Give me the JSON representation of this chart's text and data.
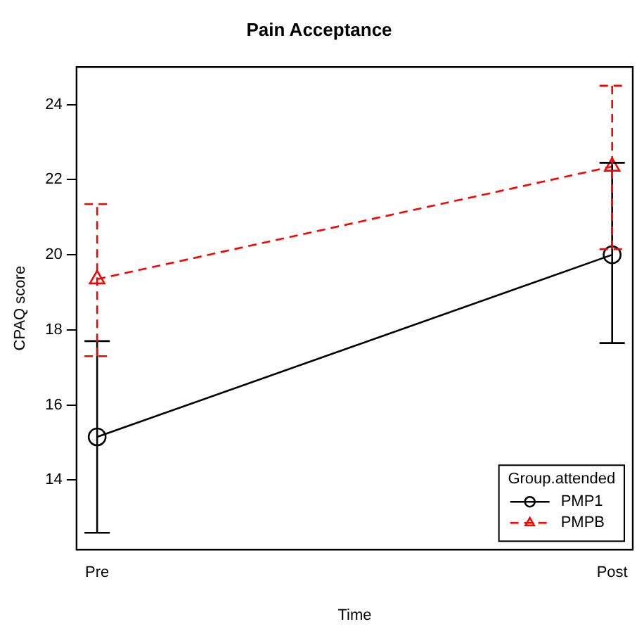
{
  "chart_data": {
    "type": "line",
    "title": "Pain Acceptance",
    "xlabel": "Time",
    "ylabel": "CPAQ score",
    "legend_title": "Group.attended",
    "categories": [
      "Pre",
      "Post"
    ],
    "ylim": [
      12.15,
      25
    ],
    "yticks": [
      14,
      16,
      18,
      20,
      22,
      24
    ],
    "grid": false,
    "legend": "bottom right",
    "series": [
      {
        "name": "PMP1",
        "color": "#000000",
        "values": [
          15.15,
          20.0
        ],
        "errors": [
          [
            12.6,
            17.7
          ],
          [
            17.65,
            22.45
          ]
        ],
        "marker": "circle",
        "line_style": "solid"
      },
      {
        "name": "PMPB",
        "color": "#ff0000",
        "values": [
          19.35,
          22.35
        ],
        "errors": [
          [
            17.3,
            21.35
          ],
          [
            20.15,
            24.5
          ]
        ],
        "marker": "triangle",
        "line_style": "dashed"
      }
    ]
  }
}
